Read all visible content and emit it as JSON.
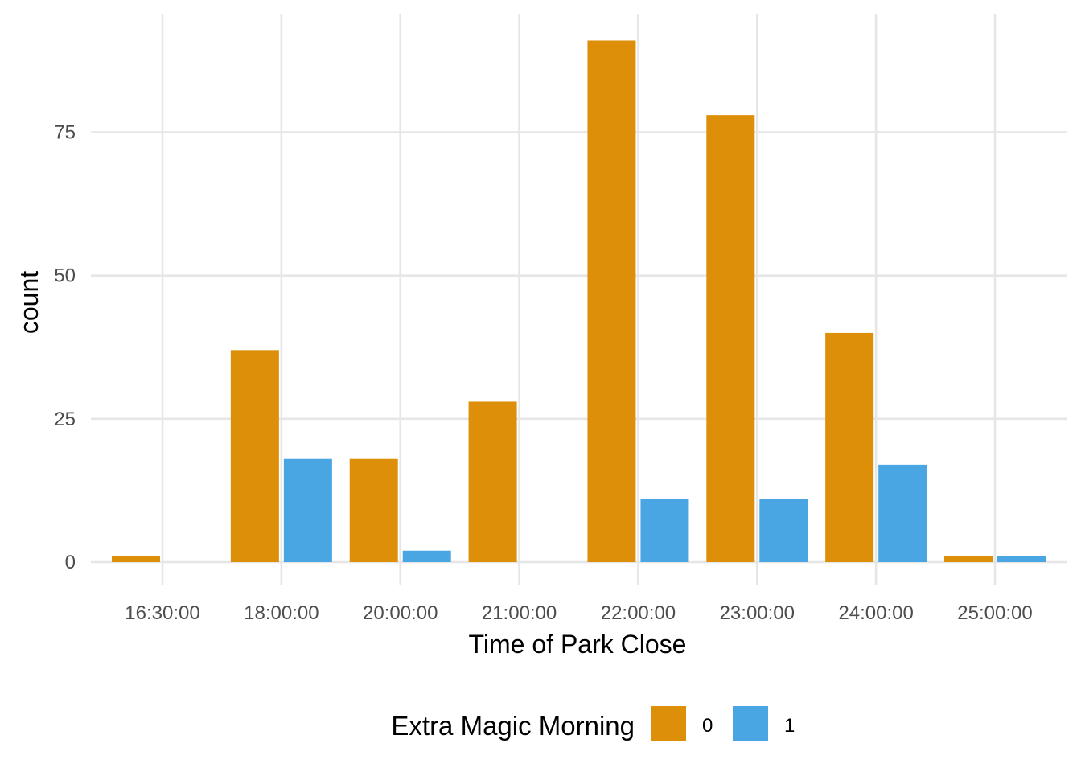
{
  "chart_data": {
    "type": "bar",
    "categories": [
      "16:30:00",
      "18:00:00",
      "20:00:00",
      "21:00:00",
      "22:00:00",
      "23:00:00",
      "24:00:00",
      "25:00:00"
    ],
    "series": [
      {
        "name": "0",
        "values": [
          1,
          37,
          18,
          28,
          91,
          78,
          40,
          1
        ]
      },
      {
        "name": "1",
        "values": [
          null,
          18,
          2,
          null,
          11,
          11,
          17,
          1
        ]
      }
    ],
    "colors": [
      "#DE8F0A",
      "#49A6E3"
    ],
    "xlabel": "Time of Park Close",
    "ylabel": "count",
    "yticks": [
      0,
      25,
      50,
      75
    ],
    "ylim": [
      -2,
      94
    ],
    "grid": true,
    "legend": {
      "title": "Extra Magic Morning",
      "position": "bottom",
      "labels": [
        "0",
        "1"
      ]
    }
  }
}
